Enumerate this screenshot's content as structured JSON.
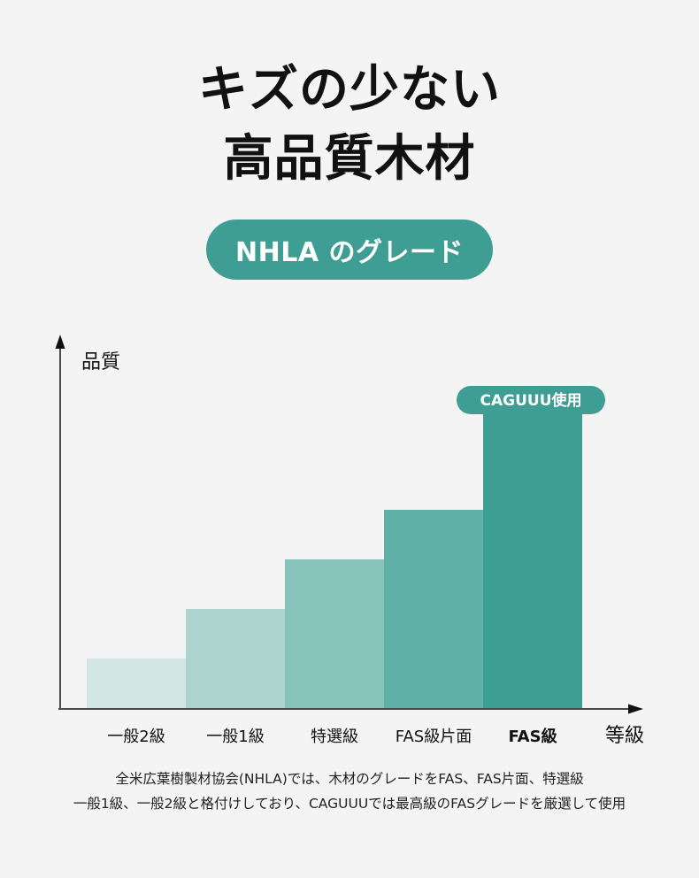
{
  "headline": {
    "line1": "キズの少ない",
    "line2": "高品質木材"
  },
  "badge": {
    "label": "NHLA のグレード"
  },
  "callout": {
    "label": "CAGUUU使用"
  },
  "footnote": {
    "line1": "全米広葉樹製材協会(NHLA)では、木材のグレードをFAS、FAS片面、特選級",
    "line2": "一般1級、一般2級と格付けしており、CAGUUUでは最高級のFASグレードを厳選して使用"
  },
  "colors": {
    "bars": [
      "#d2e6e3",
      "#abd4cf",
      "#87c2bb",
      "#5fb0a6",
      "#3d9e94"
    ],
    "accent": "#3e9e94"
  },
  "chart_data": {
    "type": "bar",
    "title": "",
    "xlabel": "等級",
    "ylabel": "品質",
    "categories": [
      "一般2級",
      "一般1級",
      "特選級",
      "FAS級片面",
      "FAS級"
    ],
    "values": [
      1,
      2,
      3,
      4,
      6.5
    ],
    "ylim": [
      0,
      8
    ],
    "highlight_index": 4,
    "y_ticks": false,
    "grid": false,
    "legend": "none"
  }
}
